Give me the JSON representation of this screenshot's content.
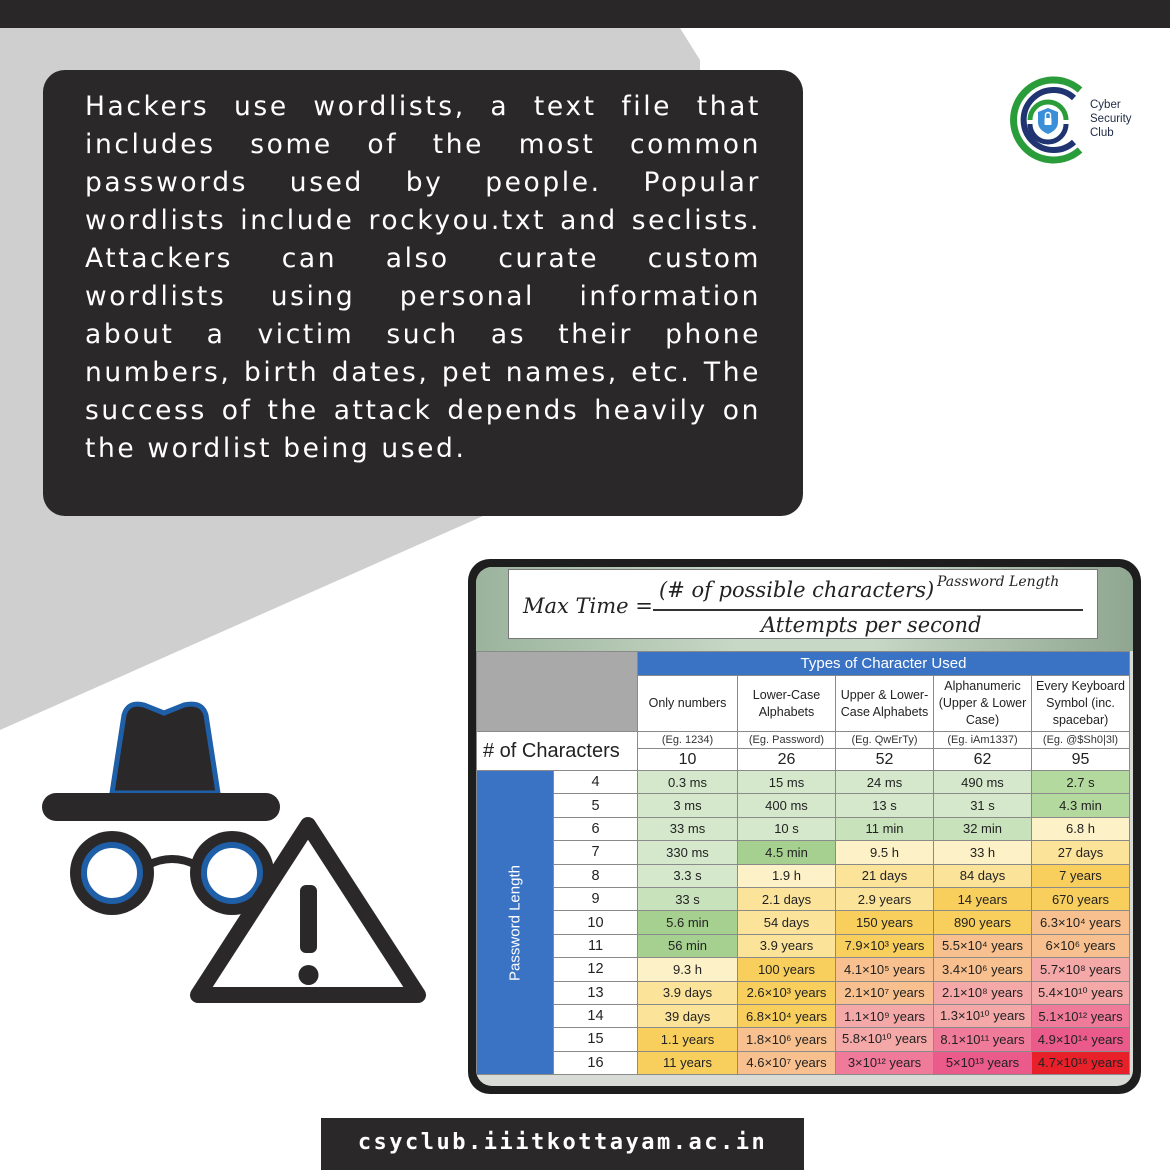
{
  "description_text": "Hackers use wordlists, a text file that includes some of the most common passwords used by people. Popular wordlists include rockyou.txt and seclists. Attackers can also curate custom wordlists using personal information about a victim such as their phone numbers, birth dates, pet names, etc. The success of the attack depends heavily on the wordlist being used.",
  "logo": {
    "line1": "Cyber",
    "line2": "Security",
    "line3": "Club",
    "icon": "shield-lock-icon"
  },
  "formula": {
    "lhs": "Max Time =",
    "numerator": "(# of possible characters)",
    "exponent": "Password Length",
    "denominator": "Attempts per second"
  },
  "table": {
    "types_header": "Types of Character Used",
    "chars_label": "# of Characters",
    "side_label": "Password Length",
    "columns": [
      {
        "name": "Only numbers",
        "example": "(Eg. 1234)",
        "count": "10"
      },
      {
        "name": "Lower-Case Alphabets",
        "example": "(Eg. Password)",
        "count": "26"
      },
      {
        "name": "Upper & Lower-Case Alphabets",
        "example": "(Eg. QwErTy)",
        "count": "52"
      },
      {
        "name": "Alphanumeric (Upper & Lower Case)",
        "example": "(Eg. iAm1337)",
        "count": "62"
      },
      {
        "name": "Every Keyboard Symbol (inc. spacebar)",
        "example": "(Eg. @$Sh0|3l)",
        "count": "95"
      }
    ],
    "rows": [
      {
        "len": "4",
        "cells": [
          "0.3 ms",
          "15 ms",
          "24 ms",
          "490 ms",
          "2.7 s"
        ]
      },
      {
        "len": "5",
        "cells": [
          "3 ms",
          "400 ms",
          "13 s",
          "31 s",
          "4.3 min"
        ]
      },
      {
        "len": "6",
        "cells": [
          "33 ms",
          "10 s",
          "11 min",
          "32 min",
          "6.8 h"
        ]
      },
      {
        "len": "7",
        "cells": [
          "330 ms",
          "4.5 min",
          "9.5 h",
          "33 h",
          "27 days"
        ]
      },
      {
        "len": "8",
        "cells": [
          "3.3 s",
          "1.9 h",
          "21 days",
          "84 days",
          "7 years"
        ]
      },
      {
        "len": "9",
        "cells": [
          "33 s",
          "2.1 days",
          "2.9 years",
          "14 years",
          "670 years"
        ]
      },
      {
        "len": "10",
        "cells": [
          "5.6 min",
          "54 days",
          "150 years",
          "890 years",
          "6.3×10⁴ years"
        ]
      },
      {
        "len": "11",
        "cells": [
          "56 min",
          "3.9 years",
          "7.9×10³ years",
          "5.5×10⁴ years",
          "6×10⁶ years"
        ]
      },
      {
        "len": "12",
        "cells": [
          "9.3 h",
          "100 years",
          "4.1×10⁵ years",
          "3.4×10⁶ years",
          "5.7×10⁸ years"
        ]
      },
      {
        "len": "13",
        "cells": [
          "3.9 days",
          "2.6×10³ years",
          "2.1×10⁷ years",
          "2.1×10⁸ years",
          "5.4×10¹⁰ years"
        ]
      },
      {
        "len": "14",
        "cells": [
          "39 days",
          "6.8×10⁴ years",
          "1.1×10⁹ years",
          "1.3×10¹⁰ years",
          "5.1×10¹² years"
        ]
      },
      {
        "len": "15",
        "cells": [
          "1.1 years",
          "1.8×10⁶ years",
          "5.8×10¹⁰ years",
          "8.1×10¹¹ years",
          "4.9×10¹⁴ years"
        ]
      },
      {
        "len": "16",
        "cells": [
          "11 years",
          "4.6×10⁷ years",
          "3×10¹² years",
          "5×10¹³ years",
          "4.7×10¹⁶ years"
        ]
      }
    ],
    "cell_colors": [
      [
        "#d5e8cc",
        "#d5e8cc",
        "#d5e8cc",
        "#d5e8cc",
        "#b3d99e"
      ],
      [
        "#d5e8cc",
        "#d5e8cc",
        "#d5e8cc",
        "#d5e8cc",
        "#b3d99e"
      ],
      [
        "#d5e8cc",
        "#d5e8cc",
        "#c8e2bb",
        "#c8e2bb",
        "#fdf1c7"
      ],
      [
        "#d5e8cc",
        "#a6d08f",
        "#fdf1c7",
        "#fdf1c7",
        "#fbe39a"
      ],
      [
        "#d5e8cc",
        "#fdf1c7",
        "#fbe39a",
        "#fbe39a",
        "#f8cf5d"
      ],
      [
        "#c8e2bb",
        "#fbe39a",
        "#fbe39a",
        "#f8cf5d",
        "#f8cf5d"
      ],
      [
        "#a6d08f",
        "#fbe39a",
        "#f8cf5d",
        "#f8cf5d",
        "#f7c08e"
      ],
      [
        "#a6d08f",
        "#fbe39a",
        "#f8cf5d",
        "#f7c08e",
        "#f7c08e"
      ],
      [
        "#fdf1c7",
        "#f8cf5d",
        "#f7c08e",
        "#f7c08e",
        "#f4a8a8"
      ],
      [
        "#fbe39a",
        "#f8cf5d",
        "#f7c08e",
        "#f4a8a8",
        "#f4a8a8"
      ],
      [
        "#fbe39a",
        "#f8cf5d",
        "#f4a8a8",
        "#f4a8a8",
        "#f07a9a"
      ],
      [
        "#f8cf5d",
        "#f7c08e",
        "#f4a8a8",
        "#f07a9a",
        "#ea5a8a"
      ],
      [
        "#f8cf5d",
        "#f7c08e",
        "#f07a9a",
        "#ea5a8a",
        "#e8202a"
      ]
    ]
  },
  "footer_url": "csyclub.iiitkottayam.ac.in",
  "colors": {
    "dark_panel": "#2b2829",
    "accent_blue": "#3a73c4",
    "logo_green": "#2a9d3a",
    "logo_navy": "#1f3470",
    "spy_blue": "#1f5fa8"
  }
}
